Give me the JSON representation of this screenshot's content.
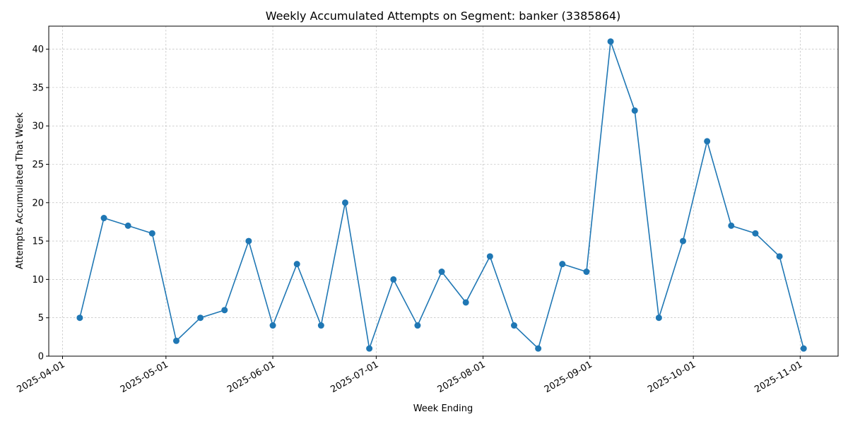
{
  "chart_data": {
    "type": "line",
    "title": "Weekly Accumulated Attempts on Segment: banker (3385864)",
    "xlabel": "Week Ending",
    "ylabel": "Attempts Accumulated That Week",
    "x_ticks": [
      "2025-04-01",
      "2025-05-01",
      "2025-06-01",
      "2025-07-01",
      "2025-08-01",
      "2025-09-01",
      "2025-10-01",
      "2025-11-01"
    ],
    "y_ticks": [
      0,
      5,
      10,
      15,
      20,
      25,
      30,
      35,
      40
    ],
    "xlim": [
      "2025-03-28",
      "2025-11-12"
    ],
    "ylim": [
      0,
      43
    ],
    "grid": true,
    "color": "#1f77b4",
    "series": [
      {
        "x": [
          "2025-04-06",
          "2025-04-13",
          "2025-04-20",
          "2025-04-27",
          "2025-05-04",
          "2025-05-11",
          "2025-05-18",
          "2025-05-25",
          "2025-06-01",
          "2025-06-08",
          "2025-06-15",
          "2025-06-22",
          "2025-06-29",
          "2025-07-06",
          "2025-07-13",
          "2025-07-20",
          "2025-07-27",
          "2025-08-03",
          "2025-08-10",
          "2025-08-17",
          "2025-08-24",
          "2025-08-31",
          "2025-09-07",
          "2025-09-14",
          "2025-09-21",
          "2025-09-28",
          "2025-10-05",
          "2025-10-12",
          "2025-10-19",
          "2025-10-26",
          "2025-11-02"
        ],
        "values": [
          5,
          18,
          17,
          16,
          2,
          5,
          6,
          15,
          4,
          12,
          4,
          20,
          1,
          10,
          4,
          11,
          7,
          13,
          4,
          1,
          12,
          11,
          41,
          32,
          5,
          15,
          28,
          17,
          16,
          13,
          1
        ]
      }
    ]
  }
}
